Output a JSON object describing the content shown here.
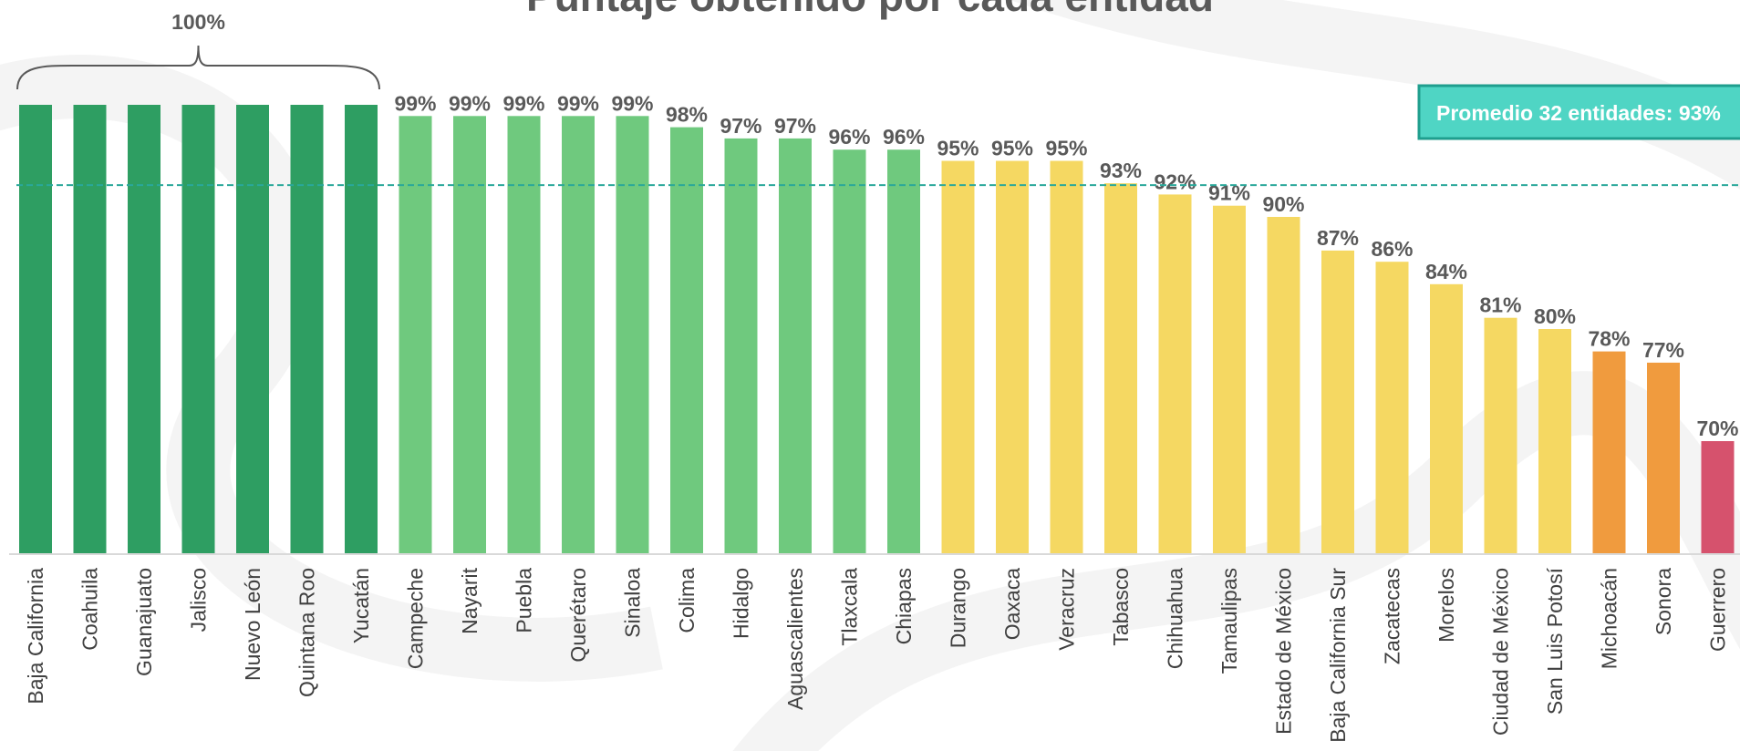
{
  "chart_data": {
    "type": "bar",
    "title": "Puntaje obtenido por cada entidad",
    "categories": [
      "Baja California",
      "Coahuila",
      "Guanajuato",
      "Jalisco",
      "Nuevo León",
      "Quintana Roo",
      "Yucatán",
      "Campeche",
      "Nayarit",
      "Puebla",
      "Querétaro",
      "Sinaloa",
      "Colima",
      "Hidalgo",
      "Aguascalientes",
      "Tlaxcala",
      "Chiapas",
      "Durango",
      "Oaxaca",
      "Veracruz",
      "Tabasco",
      "Chihuahua",
      "Tamaulipas",
      "Estado de México",
      "Baja California Sur",
      "Zacatecas",
      "Morelos",
      "Ciudad de México",
      "San Luis Potosí",
      "Michoacán",
      "Sonora",
      "Guerrero"
    ],
    "values": [
      100,
      100,
      100,
      100,
      100,
      100,
      100,
      99,
      99,
      99,
      99,
      99,
      98,
      97,
      97,
      96,
      96,
      95,
      95,
      95,
      93,
      92,
      91,
      90,
      87,
      86,
      84,
      81,
      80,
      78,
      77,
      70
    ],
    "value_labels": [
      "",
      "",
      "",
      "",
      "",
      "",
      "",
      "99%",
      "99%",
      "99%",
      "99%",
      "99%",
      "98%",
      "97%",
      "97%",
      "96%",
      "96%",
      "95%",
      "95%",
      "95%",
      "93%",
      "92%",
      "91%",
      "90%",
      "87%",
      "86%",
      "84%",
      "81%",
      "80%",
      "78%",
      "77%",
      "70%"
    ],
    "group_label": "100%",
    "group_span": [
      0,
      6
    ],
    "average": {
      "value": 93,
      "label": "Promedio 32 entidades: 93%"
    },
    "ylim": [
      0,
      100
    ],
    "xlabel": "",
    "ylabel": "",
    "grid": false,
    "colors": {
      "dark_green": "#2e9e62",
      "light_green": "#6fc97e",
      "yellow": "#f5d862",
      "orange": "#f09b3e",
      "red": "#d6526d"
    },
    "bar_colors": [
      "dark_green",
      "dark_green",
      "dark_green",
      "dark_green",
      "dark_green",
      "dark_green",
      "dark_green",
      "light_green",
      "light_green",
      "light_green",
      "light_green",
      "light_green",
      "light_green",
      "light_green",
      "light_green",
      "light_green",
      "light_green",
      "yellow",
      "yellow",
      "yellow",
      "yellow",
      "yellow",
      "yellow",
      "yellow",
      "yellow",
      "yellow",
      "yellow",
      "yellow",
      "yellow",
      "orange",
      "orange",
      "red"
    ]
  }
}
